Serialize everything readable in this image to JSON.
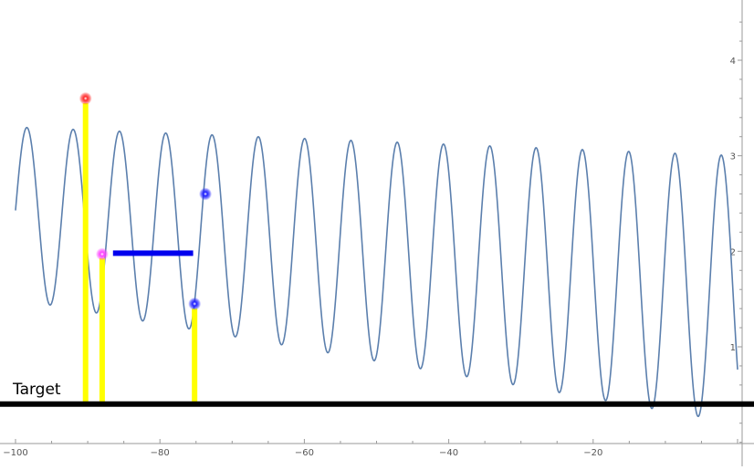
{
  "chart_data": {
    "type": "line",
    "title": "",
    "xlabel": "",
    "ylabel": "",
    "xlim": [
      -100,
      1
    ],
    "ylim": [
      -0.15,
      4.55
    ],
    "grid": false,
    "legend": "none",
    "x_ticks": [
      -100,
      -80,
      -60,
      -40,
      -20
    ],
    "x_tick_labels": [
      "−100",
      "−80",
      "−60",
      "−40",
      "−20"
    ],
    "y_ticks": [
      1,
      2,
      3,
      4
    ],
    "y_tick_labels": [
      "1",
      "2",
      "3",
      "4"
    ],
    "series": [
      {
        "name": "",
        "color": "#5b7fad",
        "function": {
          "form": "A(x) + B(x) * sin(w * x + phi)",
          "A_linear": [
            1.6,
            -0.008
          ],
          "B_linear": [
            1.4,
            0.005
          ],
          "w": 0.98,
          "phi": -2.5,
          "x_range": [
            -100,
            0
          ]
        }
      }
    ],
    "target": {
      "label": "Target",
      "y": 0.4,
      "color": "#000000"
    },
    "markers": [
      {
        "x": -90.3,
        "y": 3.6,
        "color": "#ff2a2a"
      },
      {
        "x": -88.0,
        "y": 1.97,
        "color": "#ff40ff"
      },
      {
        "x": -75.2,
        "y": 1.45,
        "color": "#2020ff"
      },
      {
        "x": -73.7,
        "y": 2.6,
        "color": "#2020ff"
      }
    ],
    "vertical_bars": [
      {
        "x": -90.3,
        "y_top": 3.55,
        "color": "#ffff00"
      },
      {
        "x": -88.0,
        "y_top": 1.93,
        "color": "#ffff00"
      },
      {
        "x": -75.2,
        "y_top": 1.4,
        "color": "#ffff00"
      }
    ],
    "horizontal_bar": {
      "x_start": -86.5,
      "x_end": -75.4,
      "y": 1.98,
      "color": "#0000ee"
    }
  }
}
